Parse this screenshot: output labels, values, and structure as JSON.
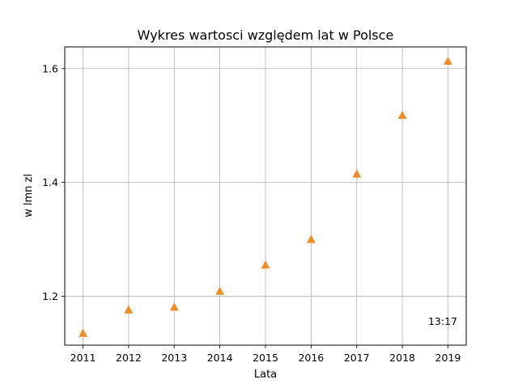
{
  "chart_data": {
    "type": "scatter",
    "title": "Wykres wartosci względem lat w Polsce",
    "xlabel": "Lata",
    "ylabel": "w lmn zl",
    "x": [
      2011,
      2012,
      2013,
      2014,
      2015,
      2016,
      2017,
      2018,
      2019
    ],
    "y": [
      1.135,
      1.176,
      1.181,
      1.209,
      1.255,
      1.3,
      1.415,
      1.518,
      1.613
    ],
    "xlim": [
      2010.6,
      2019.4
    ],
    "ylim": [
      1.114,
      1.638
    ],
    "xticks": [
      "2011",
      "2012",
      "2013",
      "2014",
      "2015",
      "2016",
      "2017",
      "2018",
      "2019"
    ],
    "yticks": [
      "1.2",
      "1.4",
      "1.6"
    ],
    "ytick_values": [
      1.2,
      1.4,
      1.6
    ],
    "grid": true,
    "marker": "triangle-up",
    "marker_color": "#ec8f2c",
    "annotation": "13:17"
  }
}
